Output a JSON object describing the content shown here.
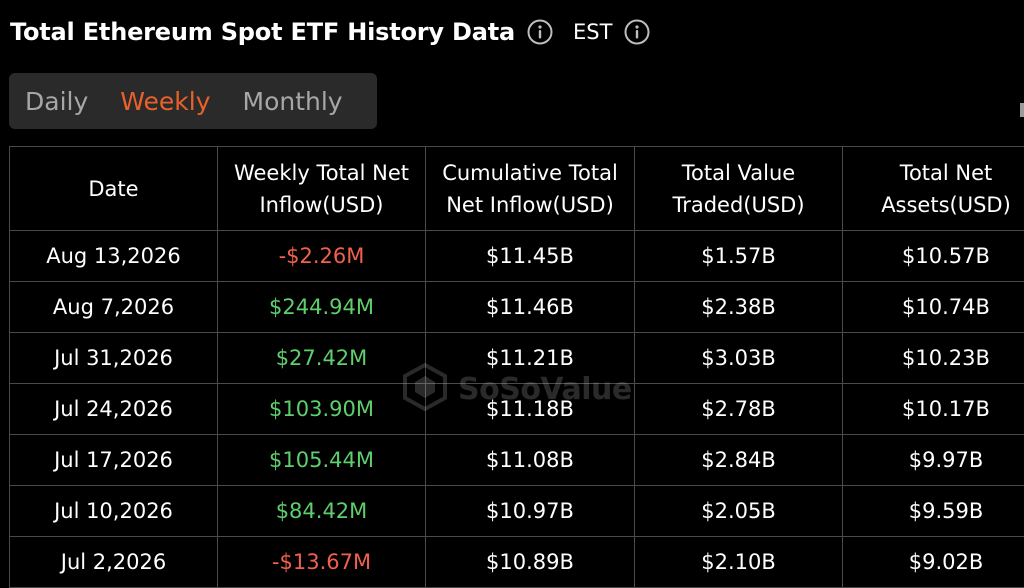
{
  "header": {
    "title": "Total Ethereum Spot ETF History Data",
    "timezone": "EST"
  },
  "tabs": [
    {
      "label": "Daily",
      "active": false
    },
    {
      "label": "Weekly",
      "active": true
    },
    {
      "label": "Monthly",
      "active": false
    }
  ],
  "table": {
    "columns": [
      "Date",
      "Weekly Total Net Inflow(USD)",
      "Cumulative Total Net Inflow(USD)",
      "Total Value Traded(USD)",
      "Total Net Assets(USD)"
    ],
    "rows": [
      {
        "date": "Aug 13,2026",
        "net_inflow": "-$2.26M",
        "net_inflow_sign": "neg",
        "cumulative": "$11.45B",
        "traded": "$1.57B",
        "assets": "$10.57B"
      },
      {
        "date": "Aug 7,2026",
        "net_inflow": "$244.94M",
        "net_inflow_sign": "pos",
        "cumulative": "$11.46B",
        "traded": "$2.38B",
        "assets": "$10.74B"
      },
      {
        "date": "Jul 31,2026",
        "net_inflow": "$27.42M",
        "net_inflow_sign": "pos",
        "cumulative": "$11.21B",
        "traded": "$3.03B",
        "assets": "$10.23B"
      },
      {
        "date": "Jul 24,2026",
        "net_inflow": "$103.90M",
        "net_inflow_sign": "pos",
        "cumulative": "$11.18B",
        "traded": "$2.78B",
        "assets": "$10.17B"
      },
      {
        "date": "Jul 17,2026",
        "net_inflow": "$105.44M",
        "net_inflow_sign": "pos",
        "cumulative": "$11.08B",
        "traded": "$2.84B",
        "assets": "$9.97B"
      },
      {
        "date": "Jul 10,2026",
        "net_inflow": "$84.42M",
        "net_inflow_sign": "pos",
        "cumulative": "$10.97B",
        "traded": "$2.05B",
        "assets": "$9.59B"
      },
      {
        "date": "Jul 2,2026",
        "net_inflow": "-$13.67M",
        "net_inflow_sign": "neg",
        "cumulative": "$10.89B",
        "traded": "$2.10B",
        "assets": "$9.02B"
      }
    ]
  },
  "watermark": {
    "logo": "sosovalue-logo",
    "text": "SoSoValue"
  },
  "colors": {
    "background": "#000000",
    "accent": "#e8612a",
    "positive": "#5fce6c",
    "negative": "#f0604f",
    "tab_bg": "#2a2a2a",
    "border": "#4a4a4a"
  }
}
